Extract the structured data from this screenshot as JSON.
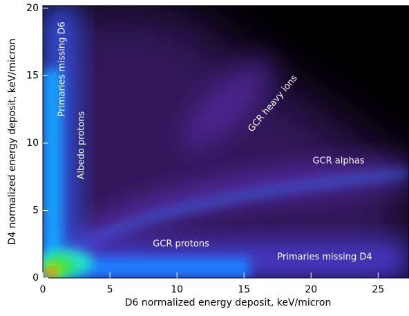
{
  "chart_data": {
    "type": "histogram2d",
    "xlabel": "D6 normalized energy deposit, keV/micron",
    "ylabel": "D4 normalized energy deposit, keV/micron",
    "xlim": [
      0,
      27.3
    ],
    "ylim": [
      0,
      20.2
    ],
    "xticks": [
      0,
      5,
      10,
      15,
      20,
      25
    ],
    "yticks": [
      0,
      5,
      10,
      15,
      20
    ],
    "annotations": [
      "Primaries missing D6",
      "Albedo protons",
      "GCR heavy ions",
      "GCR alphas",
      "GCR protons",
      "Primaries missing D4"
    ]
  }
}
